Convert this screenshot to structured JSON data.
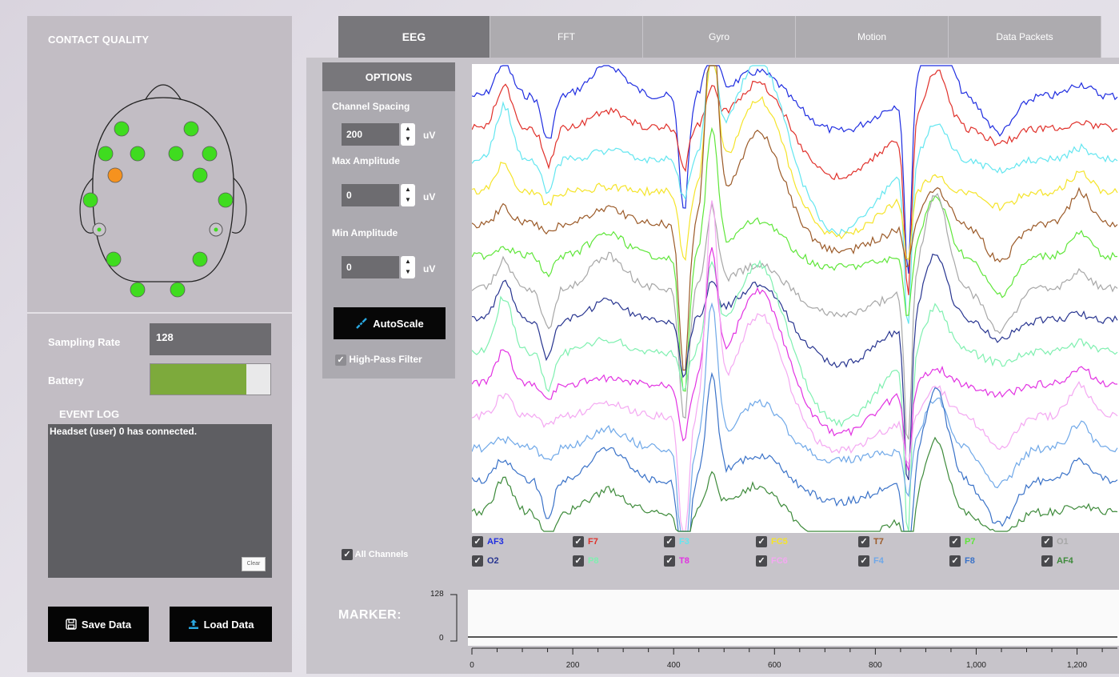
{
  "contact_quality": {
    "title": "CONTACT QUALITY",
    "sensors": [
      {
        "status": "good"
      },
      {
        "status": "good"
      },
      {
        "status": "good"
      },
      {
        "status": "good"
      },
      {
        "status": "good"
      },
      {
        "status": "good"
      },
      {
        "status": "poor"
      },
      {
        "status": "good"
      },
      {
        "status": "good"
      },
      {
        "status": "good"
      },
      {
        "status": "good"
      },
      {
        "status": "good"
      },
      {
        "status": "good"
      },
      {
        "status": "good"
      },
      {
        "status": "reference"
      },
      {
        "status": "reference"
      }
    ],
    "colors": {
      "good": "#3fdc1f",
      "poor": "#f6921e"
    }
  },
  "status": {
    "sampling_rate_label": "Sampling Rate",
    "sampling_rate_value": "128",
    "battery_label": "Battery",
    "battery_level": 0.8,
    "battery_color": "#7daa3c"
  },
  "event_log": {
    "title": "EVENT LOG",
    "entries": [
      "Headset (user) 0 has connected."
    ],
    "clear_label": "Clear"
  },
  "actions": {
    "save_label": "Save Data",
    "load_label": "Load Data"
  },
  "tabs": [
    {
      "label": "EEG",
      "active": true
    },
    {
      "label": "FFT",
      "active": false
    },
    {
      "label": "Gyro",
      "active": false
    },
    {
      "label": "Motion",
      "active": false
    },
    {
      "label": "Data Packets",
      "active": false
    }
  ],
  "options": {
    "title": "OPTIONS",
    "channel_spacing_label": "Channel Spacing",
    "channel_spacing_value": "200",
    "max_amplitude_label": "Max Amplitude",
    "max_amplitude_value": "0",
    "min_amplitude_label": "Min Amplitude",
    "min_amplitude_value": "0",
    "unit": "uV",
    "autoscale_label": "AutoScale",
    "high_pass_label": "High-Pass Filter",
    "high_pass_checked": true
  },
  "channels": {
    "all_label": "All Channels",
    "list": [
      {
        "name": "AF3",
        "color": "#1f2de0",
        "checked": true
      },
      {
        "name": "F7",
        "color": "#e0302a",
        "checked": true
      },
      {
        "name": "F3",
        "color": "#63e6f0",
        "checked": true
      },
      {
        "name": "FC5",
        "color": "#f5e42a",
        "checked": true
      },
      {
        "name": "T7",
        "color": "#9b5a28",
        "checked": true
      },
      {
        "name": "P7",
        "color": "#5fe63a",
        "checked": true
      },
      {
        "name": "O1",
        "color": "#a7a7a7",
        "checked": true
      },
      {
        "name": "O2",
        "color": "#283590",
        "checked": true
      },
      {
        "name": "P8",
        "color": "#7ff0b0",
        "checked": true
      },
      {
        "name": "T8",
        "color": "#e232e2",
        "checked": true
      },
      {
        "name": "FC6",
        "color": "#f4a8f2",
        "checked": true
      },
      {
        "name": "F4",
        "color": "#6fa8e8",
        "checked": true
      },
      {
        "name": "F8",
        "color": "#3a72c8",
        "checked": true
      },
      {
        "name": "AF4",
        "color": "#3d8a3a",
        "checked": true
      }
    ]
  },
  "marker": {
    "label": "MARKER:",
    "y_ticks": [
      "128",
      "0"
    ],
    "x_ticks": [
      "0",
      "200",
      "400",
      "600",
      "800",
      "1,000",
      "1,200"
    ]
  }
}
